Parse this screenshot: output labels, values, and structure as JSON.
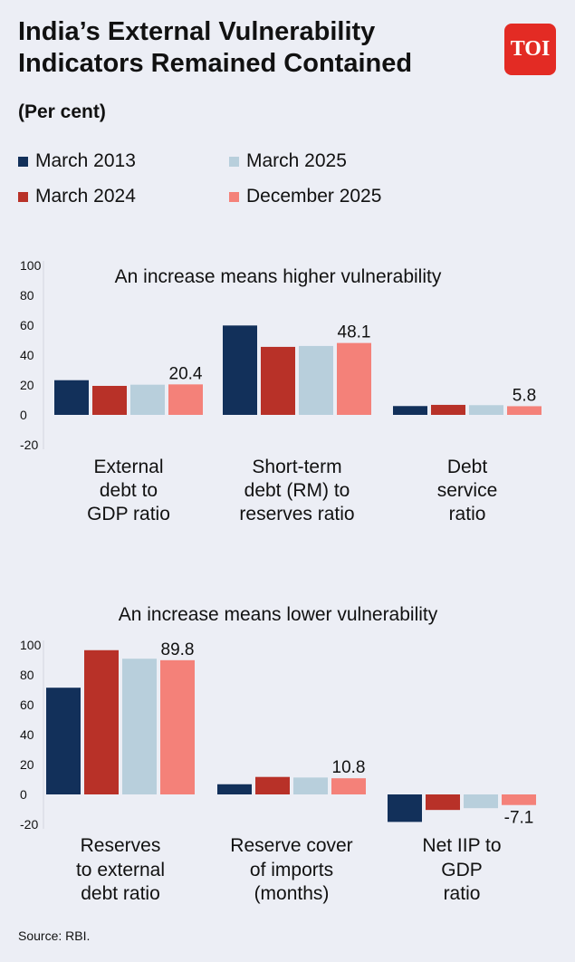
{
  "header": {
    "title_line1": "India’s External Vulnerability",
    "title_line2": "Indicators Remained Contained",
    "subtitle": "(Per cent)",
    "logo": "TOI"
  },
  "legend": [
    {
      "label": "March 2013",
      "color": "#12305a"
    },
    {
      "label": "March 2024",
      "color": "#b83128"
    },
    {
      "label": "March 2025",
      "color": "#b8cfdc"
    },
    {
      "label": "December 2025",
      "color": "#f48179"
    }
  ],
  "source": "Source: RBI.",
  "chart_data": [
    {
      "type": "bar",
      "title": "An increase means higher vulnerability",
      "ylim": [
        -20,
        100
      ],
      "yticks": [
        "100",
        "80",
        "60",
        "40",
        "20",
        "0",
        "-20"
      ],
      "categories": [
        [
          "External",
          "debt to",
          "GDP ratio"
        ],
        [
          "Short-term",
          "debt (RM) to",
          "reserves ratio"
        ],
        [
          "Debt",
          "service",
          "ratio"
        ]
      ],
      "series": [
        {
          "name": "March 2013",
          "values": [
            23.2,
            59.8,
            5.9
          ]
        },
        {
          "name": "March 2024",
          "values": [
            19.4,
            45.5,
            6.7
          ]
        },
        {
          "name": "March 2025",
          "values": [
            20.2,
            46.1,
            6.5
          ]
        },
        {
          "name": "December 2025",
          "values": [
            20.4,
            48.1,
            5.8
          ]
        }
      ],
      "data_labels": [
        "20.4",
        "48.1",
        "5.8"
      ]
    },
    {
      "type": "bar",
      "title": "An increase means lower vulnerability",
      "ylim": [
        -20,
        100
      ],
      "yticks": [
        "100",
        "80",
        "60",
        "40",
        "20",
        "0",
        "-20"
      ],
      "categories": [
        [
          "Reserves",
          "to external",
          "debt ratio"
        ],
        [
          "Reserve cover",
          "of imports",
          "(months)"
        ],
        [
          "Net IIP to",
          "GDP",
          "ratio"
        ]
      ],
      "series": [
        {
          "name": "March 2013",
          "values": [
            71.4,
            6.8,
            -18.4
          ]
        },
        {
          "name": "March 2024",
          "values": [
            96.5,
            11.7,
            -10.4
          ]
        },
        {
          "name": "March 2025",
          "values": [
            90.8,
            11.3,
            -9.2
          ]
        },
        {
          "name": "December 2025",
          "values": [
            89.8,
            10.8,
            -7.1
          ]
        }
      ],
      "data_labels": [
        "89.8",
        "10.8",
        "-7.1"
      ]
    }
  ]
}
